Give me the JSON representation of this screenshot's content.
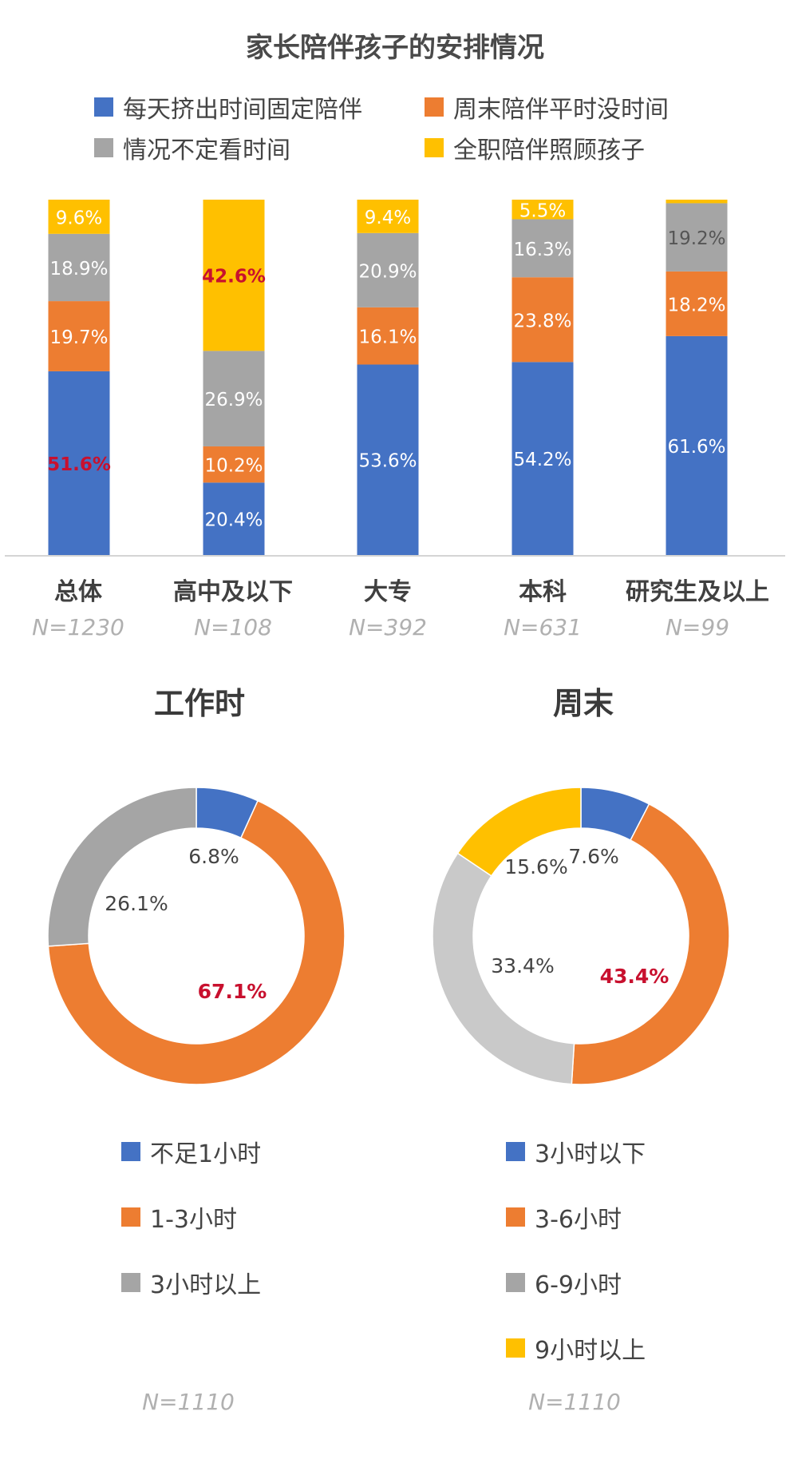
{
  "colors": {
    "blue": "#4472C4",
    "orange": "#ED7D31",
    "gray": "#A5A5A5",
    "lightgray": "#C9C9C9",
    "yellow": "#FFC000",
    "highlight": "#C8102E"
  },
  "chart_data": [
    {
      "type": "bar",
      "stacked": true,
      "title": "家长陪伴孩子的安排情况",
      "legend": [
        "每天挤出时间固定陪伴",
        "周末陪伴平时没时间",
        "情况不定看时间",
        "全职陪伴照顾孩子"
      ],
      "categories": [
        "总体",
        "高中及以下",
        "大专",
        "本科",
        "研究生及以上"
      ],
      "sample_sizes": [
        "N=1230",
        "N=108",
        "N=392",
        "N=631",
        "N=99"
      ],
      "series": [
        {
          "name": "每天挤出时间固定陪伴",
          "color": "blue",
          "values": [
            51.6,
            20.4,
            53.6,
            54.2,
            61.6
          ],
          "labels": [
            "51.6%",
            "20.4%",
            "53.6%",
            "54.2%",
            "61.6%"
          ],
          "highlight": [
            true,
            false,
            false,
            false,
            false
          ]
        },
        {
          "name": "周末陪伴平时没时间",
          "color": "orange",
          "values": [
            19.7,
            10.2,
            16.1,
            23.8,
            18.2
          ],
          "labels": [
            "19.7%",
            "10.2%",
            "16.1%",
            "23.8%",
            "18.2%"
          ],
          "highlight": [
            false,
            false,
            false,
            false,
            false
          ]
        },
        {
          "name": "情况不定看时间",
          "color": "gray",
          "values": [
            18.9,
            26.9,
            20.9,
            16.3,
            19.2
          ],
          "labels": [
            "18.9%",
            "26.9%",
            "20.9%",
            "16.3%",
            "19.2%"
          ],
          "highlight": [
            false,
            false,
            false,
            false,
            false
          ]
        },
        {
          "name": "全职陪伴照顾孩子",
          "color": "yellow",
          "values": [
            9.6,
            42.6,
            9.4,
            5.5,
            1.0
          ],
          "labels": [
            "9.6%",
            "42.6%",
            "9.4%",
            "5.5%",
            ""
          ],
          "highlight": [
            false,
            true,
            false,
            false,
            false
          ]
        }
      ],
      "ylim": [
        0,
        100
      ]
    },
    {
      "type": "pie",
      "donut": true,
      "title": "工作时",
      "slices": [
        {
          "name": "不足1小时",
          "value": 6.8,
          "label": "6.8%",
          "color": "blue",
          "highlight": false
        },
        {
          "name": "1-3小时",
          "value": 67.1,
          "label": "67.1%",
          "color": "orange",
          "highlight": true
        },
        {
          "name": "3小时以上",
          "value": 26.1,
          "label": "26.1%",
          "color": "gray",
          "highlight": false
        }
      ],
      "sample_size": "N=1110"
    },
    {
      "type": "pie",
      "donut": true,
      "title": "周末",
      "slices": [
        {
          "name": "3小时以下",
          "value": 7.6,
          "label": "7.6%",
          "color": "blue",
          "highlight": false
        },
        {
          "name": "3-6小时",
          "value": 43.4,
          "label": "43.4%",
          "color": "orange",
          "highlight": true
        },
        {
          "name": "6-9小时",
          "value": 33.4,
          "label": "33.4%",
          "color": "lightgray",
          "highlight": false
        },
        {
          "name": "9小时以上",
          "value": 15.6,
          "label": "15.6%",
          "color": "yellow",
          "highlight": false
        }
      ],
      "sample_size": "N=1110"
    }
  ]
}
